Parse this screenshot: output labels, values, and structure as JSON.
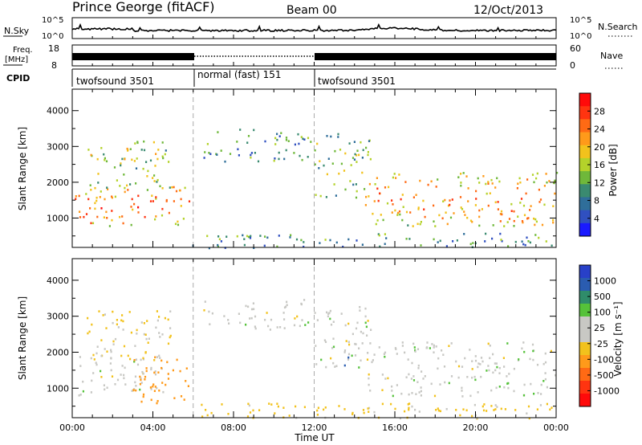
{
  "header": {
    "station": "Prince George (fitACF)",
    "beam": "Beam 00",
    "date": "12/Oct/2013"
  },
  "noise_panel": {
    "left_label": "N.Sky",
    "left_ticks": [
      "10^5",
      "10^0"
    ],
    "right_label": "N.Search",
    "right_ticks": [
      "10^5",
      "10^0"
    ]
  },
  "freq_panel": {
    "left_label_1": "Freq.",
    "left_label_2": "[MHz]",
    "left_ticks": [
      "18",
      "8"
    ],
    "right_label": "Nave",
    "right_ticks": [
      "60",
      "0"
    ]
  },
  "cpid_panel": {
    "label": "CPID",
    "segments": [
      {
        "name": "twofsound 3501",
        "start": 0,
        "end": 6
      },
      {
        "name": "normal (fast) 151",
        "start": 6,
        "end": 12
      },
      {
        "name": "twofsound 3501",
        "start": 12,
        "end": 24
      }
    ]
  },
  "colors": {
    "power": [
      "#1a1aff",
      "#3050c0",
      "#2f6e9a",
      "#3a8a70",
      "#6fb83a",
      "#b4d22a",
      "#f2c21c",
      "#ff9a1a",
      "#ff6a14",
      "#ff3410",
      "#ff0a0a"
    ],
    "velocity": [
      "#2840c8",
      "#2a5cb0",
      "#2f8c6a",
      "#55c23a",
      "#c8c8c4",
      "#c8c8c4",
      "#f2c21c",
      "#ff9a1a",
      "#ff6a14",
      "#ff3410",
      "#ff0a0a"
    ]
  },
  "power_scale": {
    "label": "Power [dB]",
    "ticks": [
      "28",
      "24",
      "20",
      "16",
      "12",
      "8",
      "4"
    ]
  },
  "velocity_scale": {
    "label": "Velocity [m s⁻¹]",
    "ticks": [
      "1000",
      "500",
      "100",
      "25",
      "-25",
      "-100",
      "-500",
      "-1000"
    ]
  },
  "chart_data": [
    {
      "type": "heatmap",
      "title": "",
      "variable": "Power",
      "xlabel": "Time UT",
      "ylabel": "Slant Range [km]",
      "x_ticks": [
        "00:00",
        "04:00",
        "08:00",
        "12:00",
        "16:00",
        "20:00",
        "00:00"
      ],
      "y_ticks": [
        "1000",
        "2000",
        "3000",
        "4000"
      ],
      "ylim": [
        180,
        4600
      ],
      "xlim_hours": [
        0,
        24
      ],
      "colorbar_range_db": [
        0,
        30
      ],
      "scatter_regions": [
        {
          "t": [
            0.0,
            5.8
          ],
          "range_km": [
            800,
            1900
          ],
          "value": 24
        },
        {
          "t": [
            0.7,
            5.0
          ],
          "range_km": [
            1800,
            3200
          ],
          "value": 14
        },
        {
          "t": [
            6.5,
            11.8
          ],
          "range_km": [
            2600,
            3500
          ],
          "value": 9
        },
        {
          "t": [
            12.0,
            14.8
          ],
          "range_km": [
            1600,
            3400
          ],
          "value": 12
        },
        {
          "t": [
            14.5,
            24.0
          ],
          "range_km": [
            800,
            2300
          ],
          "value": 22
        },
        {
          "t": [
            5.8,
            24.0
          ],
          "range_km": [
            180,
            600
          ],
          "value": 8
        }
      ]
    },
    {
      "type": "heatmap",
      "title": "",
      "variable": "Velocity",
      "xlabel": "Time UT",
      "ylabel": "Slant Range [km]",
      "x_ticks": [
        "00:00",
        "04:00",
        "08:00",
        "12:00",
        "16:00",
        "20:00",
        "00:00"
      ],
      "y_ticks": [
        "1000",
        "2000",
        "3000",
        "4000"
      ],
      "ylim": [
        180,
        4600
      ],
      "xlim_hours": [
        0,
        24
      ],
      "colorbar_range_ms": [
        -1000,
        1000
      ],
      "scatter_regions": [
        {
          "t": [
            0.0,
            4.5
          ],
          "range_km": [
            800,
            1900
          ],
          "value": 0
        },
        {
          "t": [
            3.0,
            5.8
          ],
          "range_km": [
            600,
            1900
          ],
          "value": -300
        },
        {
          "t": [
            0.7,
            5.0
          ],
          "range_km": [
            1800,
            3200
          ],
          "value": -30
        },
        {
          "t": [
            6.5,
            11.8
          ],
          "range_km": [
            2600,
            3500
          ],
          "value": 0
        },
        {
          "t": [
            13.3,
            14.0
          ],
          "range_km": [
            1600,
            2100
          ],
          "value": 150
        },
        {
          "t": [
            12.0,
            14.8
          ],
          "range_km": [
            1600,
            3400
          ],
          "value": 0
        },
        {
          "t": [
            14.5,
            24.0
          ],
          "range_km": [
            800,
            2300
          ],
          "value": 0
        },
        {
          "t": [
            5.8,
            24.0
          ],
          "range_km": [
            180,
            600
          ],
          "value": -40
        }
      ]
    }
  ]
}
